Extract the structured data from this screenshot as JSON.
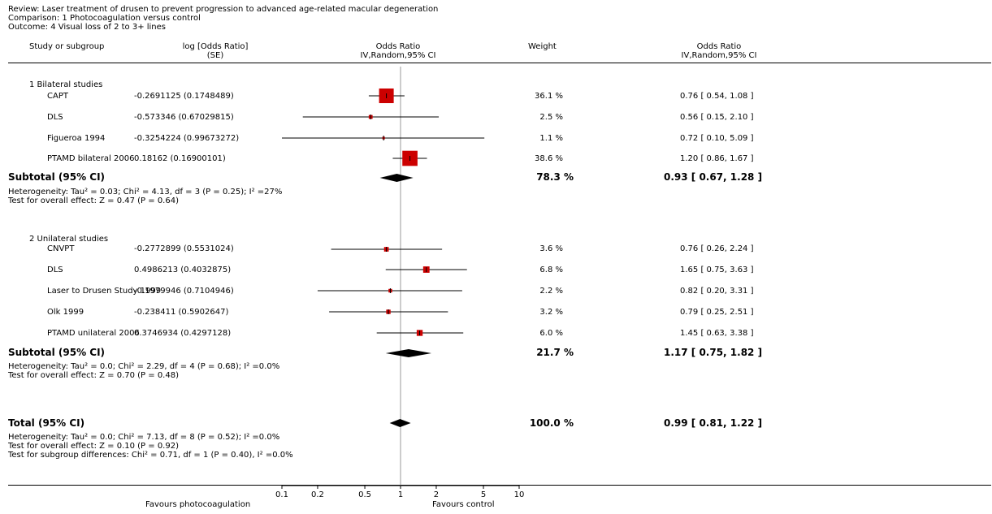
{
  "header": {
    "review": "Review:  Laser treatment of drusen to prevent progression to advanced age-related macular degeneration",
    "comparison": "Comparison:  1 Photocoagulation versus control",
    "outcome": "Outcome:  4 Visual loss of 2 to 3+ lines"
  },
  "columns": {
    "study": "Study or subgroup",
    "logor": "log [Odds Ratio]",
    "logor_sub": "(SE)",
    "or_plot": "Odds Ratio",
    "or_plot_sub": "IV,Random,95% CI",
    "weight": "Weight",
    "or_text": "Odds Ratio",
    "or_text_sub": "IV,Random,95% CI"
  },
  "footer": {
    "favours_left": "Favours photocoagulation",
    "favours_right": "Favours control"
  },
  "colors": {
    "study_box": "#cc0000",
    "diamond": "#000000",
    "line": "#000000"
  },
  "chart_data": {
    "type": "forest",
    "x_scale": "log",
    "x_ticks": [
      0.1,
      0.2,
      0.5,
      1,
      2,
      5,
      10
    ],
    "x_tick_labels": [
      "0.1",
      "0.2",
      "0.5",
      "1",
      "2",
      "5",
      "10"
    ],
    "null_line": 1,
    "subgroups": [
      {
        "label": "1 Bilateral studies",
        "studies": [
          {
            "name": "CAPT",
            "logor_se": "-0.2691125 (0.1748489)",
            "weight": "36.1 %",
            "ci_text": "0.76 [ 0.54, 1.08 ]",
            "or": 0.76,
            "lo": 0.54,
            "hi": 1.08,
            "weight_pct": 36.1
          },
          {
            "name": "DLS",
            "logor_se": "-0.573346 (0.67029815)",
            "weight": "2.5 %",
            "ci_text": "0.56 [ 0.15, 2.10 ]",
            "or": 0.56,
            "lo": 0.15,
            "hi": 2.1,
            "weight_pct": 2.5
          },
          {
            "name": "Figueroa 1994",
            "logor_se": "-0.3254224 (0.99673272)",
            "weight": "1.1 %",
            "ci_text": "0.72 [ 0.10, 5.09 ]",
            "or": 0.72,
            "lo": 0.1,
            "hi": 5.09,
            "weight_pct": 1.1
          },
          {
            "name": "PTAMD bilateral 2006",
            "logor_se": "0.18162 (0.16900101)",
            "weight": "38.6 %",
            "ci_text": "1.20 [ 0.86, 1.67 ]",
            "or": 1.2,
            "lo": 0.86,
            "hi": 1.67,
            "weight_pct": 38.6
          }
        ],
        "subtotal": {
          "label": "Subtotal (95% CI)",
          "weight": "78.3 %",
          "ci_text": "0.93 [ 0.67, 1.28 ]",
          "or": 0.93,
          "lo": 0.67,
          "hi": 1.28,
          "heterogeneity": "Heterogeneity: Tau² = 0.03; Chi² = 4.13, df = 3 (P = 0.25); I² =27%",
          "overall": "Test for overall effect: Z = 0.47 (P = 0.64)"
        }
      },
      {
        "label": "2 Unilateral studies",
        "studies": [
          {
            "name": "CNVPT",
            "logor_se": "-0.2772899 (0.5531024)",
            "weight": "3.6 %",
            "ci_text": "0.76 [ 0.26, 2.24 ]",
            "or": 0.76,
            "lo": 0.26,
            "hi": 2.24,
            "weight_pct": 3.6
          },
          {
            "name": "DLS",
            "logor_se": "0.4986213 (0.4032875)",
            "weight": "6.8 %",
            "ci_text": "1.65 [ 0.75, 3.63 ]",
            "or": 1.65,
            "lo": 0.75,
            "hi": 3.63,
            "weight_pct": 6.8
          },
          {
            "name": "Laser to Drusen Study 1999",
            "logor_se": "-0.1979946 (0.7104946)",
            "weight": "2.2 %",
            "ci_text": "0.82 [ 0.20, 3.31 ]",
            "or": 0.82,
            "lo": 0.2,
            "hi": 3.31,
            "weight_pct": 2.2
          },
          {
            "name": "Olk 1999",
            "logor_se": "-0.238411 (0.5902647)",
            "weight": "3.2 %",
            "ci_text": "0.79 [ 0.25, 2.51 ]",
            "or": 0.79,
            "lo": 0.25,
            "hi": 2.51,
            "weight_pct": 3.2
          },
          {
            "name": "PTAMD unilateral 2006",
            "logor_se": "0.3746934 (0.4297128)",
            "weight": "6.0 %",
            "ci_text": "1.45 [ 0.63, 3.38 ]",
            "or": 1.45,
            "lo": 0.63,
            "hi": 3.38,
            "weight_pct": 6.0
          }
        ],
        "subtotal": {
          "label": "Subtotal (95% CI)",
          "weight": "21.7 %",
          "ci_text": "1.17 [ 0.75, 1.82 ]",
          "or": 1.17,
          "lo": 0.75,
          "hi": 1.82,
          "heterogeneity": "Heterogeneity: Tau² = 0.0; Chi² = 2.29, df = 4 (P = 0.68); I² =0.0%",
          "overall": "Test for overall effect: Z = 0.70 (P = 0.48)"
        }
      }
    ],
    "total": {
      "label": "Total (95% CI)",
      "weight": "100.0 %",
      "ci_text": "0.99 [ 0.81, 1.22 ]",
      "or": 0.99,
      "lo": 0.81,
      "hi": 1.22,
      "heterogeneity": "Heterogeneity: Tau² = 0.0; Chi² = 7.13, df = 8 (P = 0.52); I² =0.0%",
      "overall": "Test for overall effect: Z = 0.10 (P = 0.92)",
      "subgroup_diff": "Test for subgroup differences: Chi² = 0.71, df = 1 (P = 0.40), I² =0.0%"
    }
  }
}
